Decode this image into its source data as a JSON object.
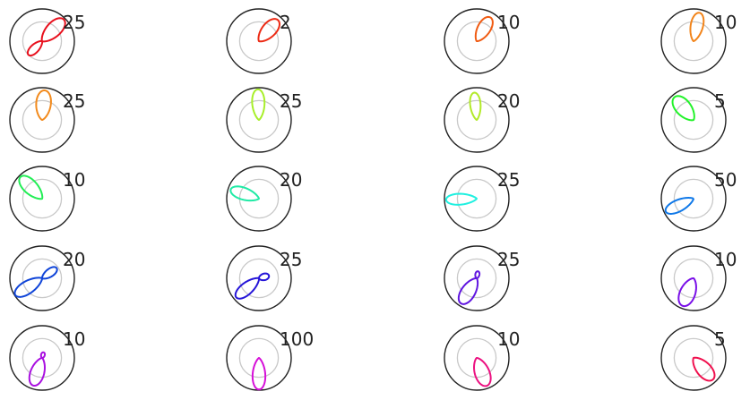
{
  "chart_data": [
    {
      "type": "polar",
      "max_label": "25",
      "color": "#e8101d",
      "lobes": [
        {
          "angle": 45,
          "r": 0.95,
          "w": 0.4
        },
        {
          "angle": 225,
          "r": 0.6,
          "w": 0.36
        }
      ]
    },
    {
      "type": "polar",
      "max_label": "2",
      "color": "#ec2a14",
      "lobes": [
        {
          "angle": 48,
          "r": 0.88,
          "w": 0.42
        }
      ]
    },
    {
      "type": "polar",
      "max_label": "10",
      "color": "#f05b12",
      "lobes": [
        {
          "angle": 60,
          "r": 0.85,
          "w": 0.4
        }
      ]
    },
    {
      "type": "polar",
      "max_label": "10",
      "color": "#f2841a",
      "lobes": [
        {
          "angle": 78,
          "r": 0.9,
          "w": 0.36
        }
      ]
    },
    {
      "type": "polar",
      "max_label": "25",
      "color": "#f28a1c",
      "lobes": [
        {
          "angle": 85,
          "r": 0.92,
          "w": 0.42
        }
      ]
    },
    {
      "type": "polar",
      "max_label": "25",
      "color": "#a8ef2a",
      "lobes": [
        {
          "angle": 92,
          "r": 0.95,
          "w": 0.34
        }
      ]
    },
    {
      "type": "polar",
      "max_label": "20",
      "color": "#b2ea2a",
      "lobes": [
        {
          "angle": 95,
          "r": 0.85,
          "w": 0.32
        }
      ]
    },
    {
      "type": "polar",
      "max_label": "5",
      "color": "#22f22a",
      "lobes": [
        {
          "angle": 130,
          "r": 0.92,
          "w": 0.44
        }
      ]
    },
    {
      "type": "polar",
      "max_label": "10",
      "color": "#22ee55",
      "lobes": [
        {
          "angle": 135,
          "r": 0.95,
          "w": 0.38
        }
      ]
    },
    {
      "type": "polar",
      "max_label": "20",
      "color": "#1feaa5",
      "lobes": [
        {
          "angle": 162,
          "r": 0.92,
          "w": 0.34
        }
      ]
    },
    {
      "type": "polar",
      "max_label": "25",
      "color": "#1ff0e0",
      "lobes": [
        {
          "angle": 182,
          "r": 0.95,
          "w": 0.3
        }
      ]
    },
    {
      "type": "polar",
      "max_label": "50",
      "color": "#0f78e8",
      "lobes": [
        {
          "angle": 205,
          "r": 0.95,
          "w": 0.32
        }
      ]
    },
    {
      "type": "polar",
      "max_label": "20",
      "color": "#0f44d8",
      "lobes": [
        {
          "angle": 212,
          "r": 0.98,
          "w": 0.34
        },
        {
          "angle": 35,
          "r": 0.55,
          "w": 0.38
        }
      ]
    },
    {
      "type": "polar",
      "max_label": "25",
      "color": "#2515d8",
      "lobes": [
        {
          "angle": 220,
          "r": 0.92,
          "w": 0.34
        },
        {
          "angle": 15,
          "r": 0.32,
          "w": 0.55
        }
      ]
    },
    {
      "type": "polar",
      "max_label": "25",
      "color": "#6015e0",
      "lobes": [
        {
          "angle": 238,
          "r": 0.92,
          "w": 0.4
        },
        {
          "angle": 80,
          "r": 0.22,
          "w": 0.5
        }
      ]
    },
    {
      "type": "polar",
      "max_label": "10",
      "color": "#7a10e8",
      "lobes": [
        {
          "angle": 248,
          "r": 0.92,
          "w": 0.44
        }
      ]
    },
    {
      "type": "polar",
      "max_label": "10",
      "color": "#a910e0",
      "lobes": [
        {
          "angle": 252,
          "r": 0.9,
          "w": 0.4
        },
        {
          "angle": 75,
          "r": 0.18,
          "w": 0.55
        }
      ]
    },
    {
      "type": "polar",
      "max_label": "100",
      "color": "#d610d8",
      "lobes": [
        {
          "angle": 270,
          "r": 0.98,
          "w": 0.34
        }
      ]
    },
    {
      "type": "polar",
      "max_label": "10",
      "color": "#ec1080",
      "lobes": [
        {
          "angle": 290,
          "r": 0.92,
          "w": 0.42
        }
      ]
    },
    {
      "type": "polar",
      "max_label": "5",
      "color": "#f0104e",
      "lobes": [
        {
          "angle": 312,
          "r": 0.9,
          "w": 0.42
        }
      ]
    }
  ],
  "axis_color": "#222222",
  "grid_color": "#c8c8c8"
}
